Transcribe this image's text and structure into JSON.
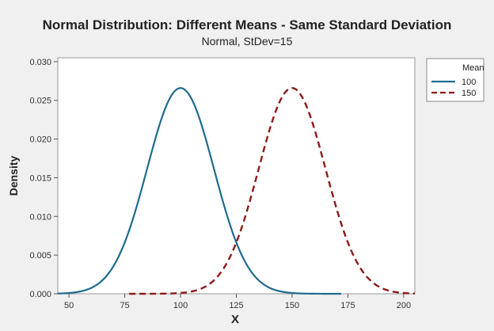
{
  "chart_data": {
    "type": "line",
    "title": "Normal Distribution: Different Means - Same Standard Deviation",
    "subtitle": "Normal, StDev=15",
    "xlabel": "X",
    "ylabel": "Density",
    "xlim": [
      45,
      205
    ],
    "ylim": [
      0,
      0.0305
    ],
    "x_ticks": [
      50,
      75,
      100,
      125,
      150,
      175,
      200
    ],
    "y_ticks": [
      0.0,
      0.005,
      0.01,
      0.015,
      0.02,
      0.025,
      0.03
    ],
    "x_tick_labels": [
      "50",
      "75",
      "100",
      "125",
      "150",
      "175",
      "200"
    ],
    "y_tick_labels": [
      "0.000",
      "0.005",
      "0.010",
      "0.015",
      "0.020",
      "0.025",
      "0.030"
    ],
    "grid": false,
    "legend": {
      "placement": "right",
      "title": "Mean",
      "entries": [
        "100",
        "150"
      ]
    },
    "series": [
      {
        "name": "100",
        "mean": 100,
        "stdev": 15,
        "x_range": [
          45,
          172
        ],
        "color": "#1f6b8f",
        "style": "solid"
      },
      {
        "name": "150",
        "mean": 150,
        "stdev": 15,
        "x_range": [
          77,
          205
        ],
        "color": "#8b1a1a",
        "style": "dashed"
      }
    ]
  }
}
